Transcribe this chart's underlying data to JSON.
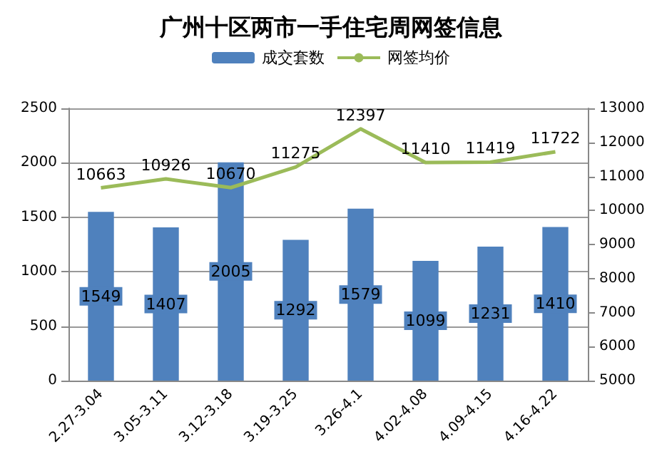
{
  "chart_data": {
    "type": "bar",
    "title": "广州十区两市一手住宅周网签信息",
    "categories": [
      "2.27-3.04",
      "3.05-3.11",
      "3.12-3.18",
      "3.19-3.25",
      "3.26-4.1",
      "4.02-4.08",
      "4.09-4.15",
      "4.16-4.22"
    ],
    "series": [
      {
        "name": "成交套数",
        "color": "#4f81bd",
        "values": [
          1549,
          1407,
          2005,
          1292,
          1579,
          1099,
          1231,
          1410
        ]
      },
      {
        "name": "网签均价",
        "type": "line",
        "axis": "y2",
        "color": "#9bbb59",
        "values": [
          10663,
          10926,
          10670,
          11275,
          12397,
          11410,
          11419,
          11722
        ]
      }
    ],
    "ylim": [
      0,
      2500
    ],
    "yticks": [
      0,
      500,
      1000,
      1500,
      2000,
      2500
    ],
    "y2lim": [
      5000,
      13000
    ],
    "y2ticks": [
      5000,
      6000,
      7000,
      8000,
      9000,
      10000,
      11000,
      12000,
      13000
    ],
    "grid": "y",
    "legend": "top",
    "marker": "none",
    "line_style": "solid",
    "data_labels": true
  }
}
